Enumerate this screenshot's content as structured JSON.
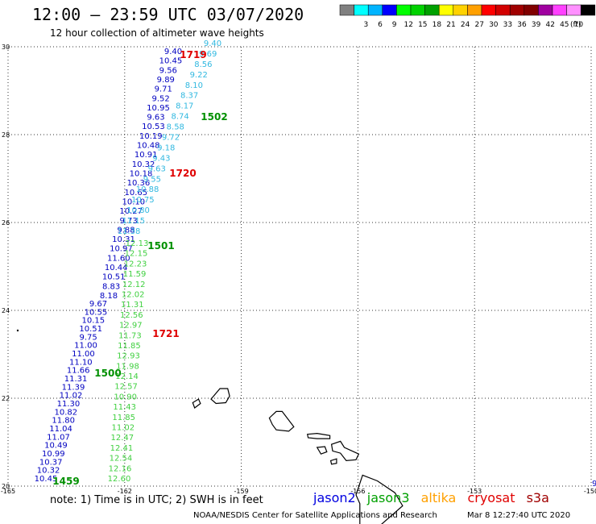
{
  "header": {
    "title": "12:00 – 23:59 UTC 03/07/2020",
    "subtitle": "12 hour collection of altimeter wave heights"
  },
  "legend": {
    "unit": "(ft)",
    "bins": [
      {
        "label": "",
        "color": "#808080"
      },
      {
        "label": "3",
        "color": "#00ffff"
      },
      {
        "label": "6",
        "color": "#00b4ff"
      },
      {
        "label": "9",
        "color": "#0000ff"
      },
      {
        "label": "12",
        "color": "#00ff00"
      },
      {
        "label": "15",
        "color": "#00d200"
      },
      {
        "label": "18",
        "color": "#00a000"
      },
      {
        "label": "21",
        "color": "#ffff00"
      },
      {
        "label": "24",
        "color": "#ffd200"
      },
      {
        "label": "27",
        "color": "#ffa000"
      },
      {
        "label": "30",
        "color": "#ff0000"
      },
      {
        "label": "33",
        "color": "#d20000"
      },
      {
        "label": "36",
        "color": "#a00000"
      },
      {
        "label": "39",
        "color": "#800000"
      },
      {
        "label": "42",
        "color": "#a000a0"
      },
      {
        "label": "45",
        "color": "#ff40ff"
      },
      {
        "label": "70",
        "color": "#ff90ff"
      },
      {
        "label": "",
        "color": "#000000"
      }
    ]
  },
  "map": {
    "lon_ticks": [
      "-165",
      "-162",
      "-159",
      "-156",
      "-153",
      "-150"
    ],
    "lat_ticks": [
      "20",
      "22",
      "24",
      "26",
      "28",
      "30"
    ],
    "tracks": [
      {
        "satellite": "jason2",
        "start_label": "1459",
        "end_label": "1500",
        "label_color": "#009000",
        "color": "#0000c0",
        "readings": [
          "10.45",
          "10.32",
          "10.37",
          "10.99",
          "10.49",
          "11.07",
          "11.04",
          "11.80",
          "10.82",
          "11.30",
          "11.02",
          "11.39",
          "11.31",
          "11.66",
          "11.10",
          "11.00",
          "11.00",
          "9.75",
          "10.51",
          "10.15",
          "10.55",
          "9.67"
        ]
      },
      {
        "satellite": "jason2",
        "start_label": "1500",
        "end_label": "1501",
        "label_color": "#009000",
        "color": "#0000c0",
        "readings": [
          "8.18",
          "8.83",
          "10.51",
          "10.44",
          "11.60",
          "10.97",
          "10.31",
          "9.88",
          "9.73",
          "10.27",
          "10.10",
          "10.65",
          "10.36",
          "10.18",
          "10.32",
          "10.91",
          "10.48",
          "10.19",
          "10.53",
          "9.63",
          "10.95",
          "9.52",
          "9.71",
          "9.89",
          "9.56",
          "10.45",
          "9.40"
        ]
      },
      {
        "satellite": "jason3",
        "start_label": "1501",
        "end_label": "1502",
        "label_color": "#009000",
        "color": "#30b8e0",
        "readings": [
          "11.38",
          "11.15",
          "10.80",
          "10.75",
          "10.88",
          "9.55",
          "9.63",
          "9.43",
          "9.18",
          "9.72",
          "8.58",
          "8.74",
          "8.17",
          "8.37",
          "8.10",
          "9.22",
          "8.56",
          "9.69",
          "9.40"
        ]
      },
      {
        "satellite": "altika",
        "start_label": "1720",
        "end_label": "1721",
        "label_color": "#e00000",
        "color": "#40d040",
        "readings": [
          "12.60",
          "12.16",
          "12.54",
          "12.41",
          "12.47",
          "11.02",
          "11.85",
          "11.43",
          "10.90",
          "12.57",
          "12.14",
          "11.98",
          "12.93",
          "11.85",
          "11.73",
          "12.97",
          "12.56",
          "11.31",
          "12.02",
          "12.12",
          "11.59",
          "12.23",
          "12.15",
          "12.13"
        ]
      },
      {
        "satellite": "cryosat",
        "start_label": "1719",
        "end_label": "1719",
        "label_color": "#e00000",
        "color": "#e00000",
        "readings": []
      }
    ],
    "time_labels": [
      {
        "text": "1459",
        "color": "#009000"
      },
      {
        "text": "1500",
        "color": "#009000"
      },
      {
        "text": "1501",
        "color": "#009000"
      },
      {
        "text": "1502",
        "color": "#009000"
      },
      {
        "text": "1719",
        "color": "#e00000"
      },
      {
        "text": "1720",
        "color": "#e00000"
      },
      {
        "text": "1721",
        "color": "#e00000"
      }
    ],
    "edge_label": "9"
  },
  "footer": {
    "note": "note:  1) Time is in UTC;  2) SWH is in feet",
    "satellites": [
      {
        "name": "jason2",
        "color": "#0000e0"
      },
      {
        "name": "jason3",
        "color": "#00a000"
      },
      {
        "name": "altika",
        "color": "#ffa000"
      },
      {
        "name": "cryosat",
        "color": "#e00000"
      },
      {
        "name": "s3a",
        "color": "#a00000"
      }
    ],
    "credit": "NOAA/NESDIS Center for Satellite Applications and Research",
    "timestamp": "Mar  8 12:27:40 UTC 2020"
  }
}
